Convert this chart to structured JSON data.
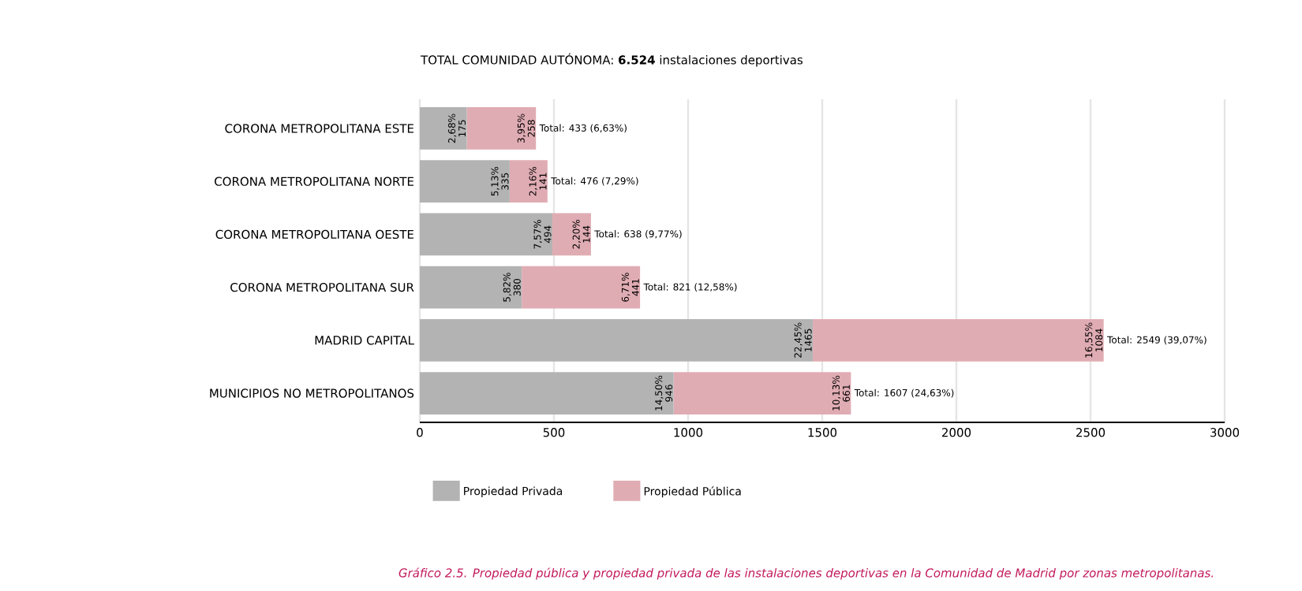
{
  "chart_data": {
    "type": "bar",
    "orientation": "horizontal",
    "stacked": true,
    "title": "TOTAL COMUNIDAD AUTÓNOMA: **6.524** instalaciones deportivas",
    "categories": [
      "CORONA METROPOLITANA ESTE",
      "CORONA METROPOLITANA NORTE",
      "CORONA METROPOLITANA OESTE",
      "CORONA METROPOLITANA SUR",
      "MADRID CAPITAL",
      "MUNICIPIOS NO METROPOLITANOS"
    ],
    "series": [
      {
        "name": "Propiedad Privada",
        "color": "#b3b3b3",
        "values": [
          175,
          335,
          494,
          380,
          1465,
          946
        ],
        "value_labels": [
          "2,68% 175",
          "5,13% 335",
          "7,57% 494",
          "5,82% 380",
          "22,45% 1465",
          "14,50% 946"
        ]
      },
      {
        "name": "Propiedad Pública",
        "color": "#e0acb3",
        "values": [
          258,
          141,
          144,
          441,
          1084,
          661
        ],
        "value_labels": [
          "3,95% 258",
          "2,16% 141",
          "2,20% 144",
          "6,71% 441",
          "16,55% 1084",
          "10,13% 661"
        ]
      }
    ],
    "totals": [
      "Total: 433  (6,63%)",
      "Total: 476  (7,29%)",
      "Total: 638  (9,77%)",
      "Total: 821  (12,58%)",
      "Total: 2549  (39,07%)",
      "Total: 1607  (24,63%)"
    ],
    "xlim": [
      0,
      3000
    ],
    "xticks": [
      0,
      500,
      1000,
      1500,
      2000,
      2500,
      3000
    ],
    "grid": "x",
    "legend": "bottom",
    "annotations": [
      "Gráfico 2.5. Propiedad pública y propiedad privada de las instalaciones deportivas en la Comunidad de Madrid por zonas metropolitanas."
    ]
  }
}
